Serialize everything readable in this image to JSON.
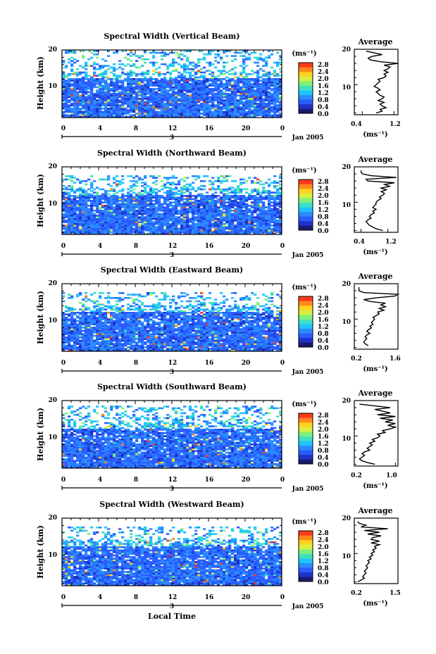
{
  "figure": {
    "common_date_label": "Jan 2005",
    "day_label": "3",
    "xlabel": "Local Time",
    "colorbar_unit": "(ms⁻¹)",
    "colorbar_ticks": [
      "0.0",
      "0.4",
      "0.8",
      "1.2",
      "1.6",
      "2.0",
      "2.4",
      "2.8"
    ],
    "colormap": [
      "#1a1a6e",
      "#1f33c8",
      "#2a5cff",
      "#2b8cff",
      "#21c3ff",
      "#3fe0c0",
      "#7ff07a",
      "#d8f040",
      "#ffd21e",
      "#ff8a1a",
      "#ff3b1a"
    ]
  },
  "chart_data": [
    {
      "type": "heatmap",
      "title": "Spectral Width (Vertical Beam)",
      "xlabel": "Local Time",
      "ylabel": "Height (km)",
      "x_ticks": [
        "0",
        "4",
        "8",
        "12",
        "16",
        "20",
        "0"
      ],
      "xlim": [
        0,
        24
      ],
      "y_ticks": [
        "10",
        "20"
      ],
      "ylim": [
        1.5,
        20
      ],
      "colorbar": {
        "label": "(ms⁻¹)",
        "range": [
          0.0,
          2.8
        ]
      },
      "data_top_km": 19.5,
      "profile": {
        "title": "Average",
        "xlabel": "(ms⁻¹)",
        "x_ticks": [
          "0.4",
          "1.2"
        ],
        "xlim": [
          0.2,
          1.3
        ],
        "y_ticks": [
          "10",
          "20"
        ],
        "ylim": [
          1.5,
          20
        ],
        "points": [
          [
            0.75,
            2
          ],
          [
            0.9,
            2.5
          ],
          [
            0.85,
            3
          ],
          [
            1.0,
            3.5
          ],
          [
            0.9,
            4
          ],
          [
            0.85,
            4.5
          ],
          [
            0.95,
            5
          ],
          [
            0.8,
            5.5
          ],
          [
            0.9,
            6
          ],
          [
            0.95,
            6.5
          ],
          [
            0.85,
            7
          ],
          [
            0.8,
            7.5
          ],
          [
            0.75,
            8
          ],
          [
            0.85,
            8.5
          ],
          [
            0.8,
            9
          ],
          [
            0.7,
            9.5
          ],
          [
            0.75,
            10
          ],
          [
            0.8,
            10.5
          ],
          [
            0.85,
            11
          ],
          [
            0.8,
            11.5
          ],
          [
            0.95,
            12
          ],
          [
            1.0,
            12.5
          ],
          [
            0.95,
            13
          ],
          [
            1.05,
            13.5
          ],
          [
            0.95,
            14
          ],
          [
            1.05,
            14.5
          ],
          [
            1.1,
            15
          ],
          [
            0.95,
            15.5
          ],
          [
            1.3,
            16
          ],
          [
            0.85,
            16.5
          ],
          [
            0.6,
            17
          ],
          [
            0.55,
            17.5
          ],
          [
            0.65,
            18
          ],
          [
            0.9,
            18.5
          ],
          [
            0.7,
            19
          ],
          [
            0.5,
            19.5
          ]
        ]
      }
    },
    {
      "type": "heatmap",
      "title": "Spectral Width (Northward Beam)",
      "xlabel": "Local Time",
      "ylabel": "Height (km)",
      "x_ticks": [
        "0",
        "4",
        "8",
        "12",
        "16",
        "20",
        "0"
      ],
      "xlim": [
        0,
        24
      ],
      "y_ticks": [
        "10",
        "20"
      ],
      "ylim": [
        1.5,
        20
      ],
      "colorbar": {
        "label": "(ms⁻¹)",
        "range": [
          0.0,
          2.8
        ]
      },
      "data_top_km": 17.5,
      "profile": {
        "title": "Average",
        "xlabel": "(ms⁻¹)",
        "x_ticks": [
          "0.4",
          "1.2"
        ],
        "xlim": [
          0.2,
          1.5
        ],
        "y_ticks": [
          "10",
          "20"
        ],
        "ylim": [
          1.5,
          20
        ],
        "points": [
          [
            1.05,
            2
          ],
          [
            0.85,
            2.5
          ],
          [
            0.75,
            3
          ],
          [
            0.65,
            3.5
          ],
          [
            0.6,
            4
          ],
          [
            0.55,
            4.5
          ],
          [
            0.6,
            5
          ],
          [
            0.7,
            5.5
          ],
          [
            0.65,
            6
          ],
          [
            0.7,
            6.5
          ],
          [
            0.8,
            7
          ],
          [
            0.75,
            7.5
          ],
          [
            0.85,
            8
          ],
          [
            0.75,
            8.5
          ],
          [
            0.8,
            9
          ],
          [
            0.85,
            9.5
          ],
          [
            0.85,
            10
          ],
          [
            0.9,
            10.5
          ],
          [
            1.0,
            11
          ],
          [
            0.95,
            11.5
          ],
          [
            1.05,
            12
          ],
          [
            1.1,
            12.5
          ],
          [
            1.0,
            13
          ],
          [
            1.15,
            13.5
          ],
          [
            1.0,
            14
          ],
          [
            1.25,
            14.5
          ],
          [
            1.1,
            15
          ],
          [
            1.4,
            15.5
          ],
          [
            0.6,
            16
          ],
          [
            0.55,
            16.5
          ],
          [
            1.45,
            17
          ],
          [
            0.7,
            17.5
          ],
          [
            0.45,
            18
          ],
          [
            0.4,
            18.5
          ],
          [
            0.4,
            19
          ]
        ]
      }
    },
    {
      "type": "heatmap",
      "title": "Spectral Width (Eastward Beam)",
      "xlabel": "Local Time",
      "ylabel": "Height (km)",
      "x_ticks": [
        "0",
        "4",
        "8",
        "12",
        "16",
        "20",
        "0"
      ],
      "xlim": [
        0,
        24
      ],
      "y_ticks": [
        "10",
        "20"
      ],
      "ylim": [
        1.5,
        20
      ],
      "colorbar": {
        "label": "(ms⁻¹)",
        "range": [
          0.0,
          2.8
        ]
      },
      "data_top_km": 17.5,
      "profile": {
        "title": "Average",
        "xlabel": "(ms⁻¹)",
        "x_ticks": [
          "0.2",
          "1.6"
        ],
        "xlim": [
          0.2,
          1.6
        ],
        "y_ticks": [
          "10",
          "20"
        ],
        "ylim": [
          1.5,
          20
        ],
        "points": [
          [
            0.65,
            2.5
          ],
          [
            0.55,
            3
          ],
          [
            0.5,
            3.5
          ],
          [
            0.55,
            4
          ],
          [
            0.6,
            4.5
          ],
          [
            0.55,
            5
          ],
          [
            0.6,
            5.5
          ],
          [
            0.7,
            6
          ],
          [
            0.6,
            6.5
          ],
          [
            0.65,
            7
          ],
          [
            0.75,
            7.5
          ],
          [
            0.7,
            8
          ],
          [
            0.8,
            8.5
          ],
          [
            0.75,
            9
          ],
          [
            0.8,
            9.5
          ],
          [
            0.85,
            10
          ],
          [
            0.8,
            10.5
          ],
          [
            0.9,
            11
          ],
          [
            1.0,
            11.5
          ],
          [
            0.95,
            12
          ],
          [
            1.15,
            12.5
          ],
          [
            1.0,
            13
          ],
          [
            1.2,
            13.5
          ],
          [
            1.05,
            14
          ],
          [
            1.2,
            14.5
          ],
          [
            0.7,
            15
          ],
          [
            0.5,
            15.5
          ],
          [
            0.9,
            16
          ],
          [
            1.5,
            16.5
          ],
          [
            1.6,
            17
          ],
          [
            0.5,
            17.5
          ],
          [
            0.35,
            18
          ],
          [
            0.35,
            19
          ]
        ]
      }
    },
    {
      "type": "heatmap",
      "title": "Spectral Width (Southward Beam)",
      "xlabel": "Local Time",
      "ylabel": "Height (km)",
      "x_ticks": [
        "0",
        "4",
        "8",
        "12",
        "16",
        "20",
        "0"
      ],
      "xlim": [
        0,
        24
      ],
      "y_ticks": [
        "10",
        "20"
      ],
      "ylim": [
        1.5,
        20
      ],
      "colorbar": {
        "label": "(ms⁻¹)",
        "range": [
          0.0,
          2.8
        ]
      },
      "data_top_km": 18.5,
      "profile": {
        "title": "Average",
        "xlabel": "(ms⁻¹)",
        "x_ticks": [
          "0.2",
          "1.0"
        ],
        "xlim": [
          0.2,
          1.05
        ],
        "y_ticks": [
          "10",
          "20"
        ],
        "ylim": [
          1.5,
          20
        ],
        "points": [
          [
            0.6,
            2
          ],
          [
            0.45,
            2.5
          ],
          [
            0.35,
            3
          ],
          [
            0.3,
            3.5
          ],
          [
            0.35,
            4
          ],
          [
            0.4,
            4.5
          ],
          [
            0.35,
            5
          ],
          [
            0.4,
            5.5
          ],
          [
            0.5,
            6
          ],
          [
            0.45,
            6.5
          ],
          [
            0.5,
            7
          ],
          [
            0.55,
            7.5
          ],
          [
            0.5,
            8
          ],
          [
            0.6,
            8.5
          ],
          [
            0.55,
            9
          ],
          [
            0.65,
            9.5
          ],
          [
            0.7,
            10
          ],
          [
            0.65,
            10.5
          ],
          [
            0.8,
            11
          ],
          [
            0.75,
            11.5
          ],
          [
            0.9,
            12
          ],
          [
            1.0,
            12.5
          ],
          [
            0.85,
            13
          ],
          [
            1.0,
            13.5
          ],
          [
            0.8,
            14
          ],
          [
            0.95,
            14.5
          ],
          [
            0.7,
            15
          ],
          [
            1.0,
            15.5
          ],
          [
            0.65,
            16
          ],
          [
            0.9,
            16.5
          ],
          [
            0.75,
            17
          ],
          [
            0.6,
            17.5
          ],
          [
            0.9,
            18
          ],
          [
            0.6,
            18.5
          ],
          [
            0.3,
            19
          ]
        ]
      }
    },
    {
      "type": "heatmap",
      "title": "Spectral Width (Westward Beam)",
      "xlabel": "Local Time",
      "ylabel": "Height (km)",
      "x_ticks": [
        "0",
        "4",
        "8",
        "12",
        "16",
        "20",
        "0"
      ],
      "xlim": [
        0,
        24
      ],
      "y_ticks": [
        "10",
        "20"
      ],
      "ylim": [
        1.5,
        20
      ],
      "colorbar": {
        "label": "(ms⁻¹)",
        "range": [
          0.0,
          2.8
        ]
      },
      "data_top_km": 17.5,
      "profile": {
        "title": "Average",
        "xlabel": "(ms⁻¹)",
        "x_ticks": [
          "0.2",
          "1.5"
        ],
        "xlim": [
          0.2,
          1.5
        ],
        "y_ticks": [
          "10",
          "20"
        ],
        "ylim": [
          1.5,
          20
        ],
        "points": [
          [
            0.3,
            2
          ],
          [
            0.4,
            2.5
          ],
          [
            0.5,
            3
          ],
          [
            0.45,
            3.5
          ],
          [
            0.5,
            4
          ],
          [
            0.55,
            4.5
          ],
          [
            0.5,
            5
          ],
          [
            0.55,
            5.5
          ],
          [
            0.6,
            6
          ],
          [
            0.55,
            6.5
          ],
          [
            0.6,
            7
          ],
          [
            0.65,
            7.5
          ],
          [
            0.6,
            8
          ],
          [
            0.7,
            8.5
          ],
          [
            0.65,
            9
          ],
          [
            0.75,
            9.5
          ],
          [
            0.7,
            10
          ],
          [
            0.8,
            10.5
          ],
          [
            0.75,
            11
          ],
          [
            0.85,
            11.5
          ],
          [
            0.8,
            12
          ],
          [
            0.95,
            12.5
          ],
          [
            0.7,
            13
          ],
          [
            0.95,
            13.5
          ],
          [
            0.7,
            14
          ],
          [
            0.75,
            14.5
          ],
          [
            1.0,
            15
          ],
          [
            0.6,
            15.5
          ],
          [
            0.95,
            16
          ],
          [
            0.5,
            16.5
          ],
          [
            1.2,
            17
          ],
          [
            0.4,
            17.5
          ],
          [
            0.55,
            18
          ],
          [
            0.35,
            18.5
          ],
          [
            0.3,
            19
          ]
        ]
      }
    }
  ]
}
